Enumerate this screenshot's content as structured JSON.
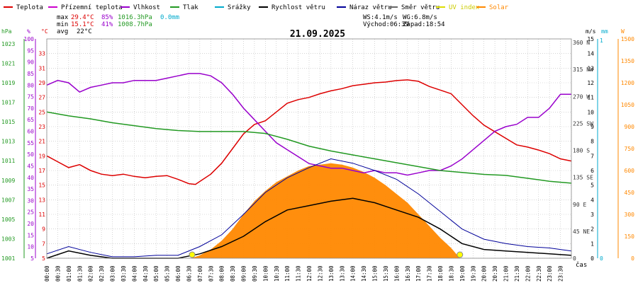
{
  "legend": [
    {
      "label": "Teplota",
      "color": "#dd0000"
    },
    {
      "label": "Přízemní teplota",
      "color": "#cc00cc"
    },
    {
      "label": "Vlhkost",
      "color": "#9900cc"
    },
    {
      "label": "Tlak",
      "color": "#229922"
    },
    {
      "label": "Srážky",
      "color": "#00aacc"
    },
    {
      "label": "Rychlost větru",
      "color": "#000000"
    },
    {
      "label": "Náraz větru",
      "color": "#000099"
    },
    {
      "label": "Směr větru",
      "color": "#666666"
    },
    {
      "label": "UV index",
      "color": "#dddd00"
    },
    {
      "label": "Solar",
      "color": "#ff8800"
    }
  ],
  "stats": {
    "max_label": "max",
    "max_temp": "29.4°C",
    "max_hum": "85%",
    "max_press": "1016.3hPa",
    "rain": "0.0mm",
    "min_label": "min",
    "min_temp": "15.1°C",
    "min_hum": "41%",
    "min_press": "1008.7hPa",
    "avg_label": "avg",
    "avg_temp": "22°C"
  },
  "wind_info": {
    "ws": "WS:4.1m/s",
    "wg": "WG:6.8m/s",
    "sunrise": "Východ:06:39",
    "sunset": "Západ:18:54"
  },
  "axis_units": {
    "hpa": "hPa",
    "pct": "%",
    "deg": "°C",
    "ms": "m/s",
    "mm": "mm",
    "w": "W",
    "time": "čas"
  },
  "colors": {
    "temp": "#dd0000",
    "hum": "#9900cc",
    "press": "#229922",
    "wind": "#000000",
    "gust": "#000099",
    "dir": "#666666",
    "solar": "#ff8800",
    "uv": "#dddd00",
    "rain": "#00aacc",
    "grid": "#bbbbbb"
  },
  "chart_data": {
    "type": "line",
    "title": "21.09.2025",
    "x_range": [
      0,
      24
    ],
    "x_ticks": [
      "00:00",
      "00:30",
      "01:00",
      "01:30",
      "02:00",
      "02:30",
      "03:00",
      "03:30",
      "04:00",
      "04:30",
      "05:00",
      "05:30",
      "06:00",
      "06:30",
      "07:00",
      "07:30",
      "08:00",
      "08:30",
      "09:00",
      "09:30",
      "10:00",
      "10:30",
      "11:00",
      "11:30",
      "12:00",
      "12:30",
      "13:00",
      "13:30",
      "14:00",
      "14:30",
      "15:00",
      "15:30",
      "16:00",
      "16:30",
      "17:00",
      "17:30",
      "18:00",
      "18:30",
      "19:00",
      "19:30",
      "20:00",
      "20:30",
      "21:00",
      "21:30",
      "22:00",
      "22:30",
      "23:00",
      "23:30"
    ],
    "axes": {
      "pressure": {
        "unit": "hPa",
        "range": [
          1001,
          1023.5
        ],
        "ticks": [
          "1001",
          "1003",
          "1005",
          "1007",
          "1009",
          "1011",
          "1013",
          "1015",
          "1017",
          "1019",
          "1021",
          "1023"
        ]
      },
      "humidity": {
        "unit": "%",
        "range": [
          5,
          100
        ],
        "ticks": [
          "5",
          "10",
          "15",
          "20",
          "25",
          "30",
          "35",
          "40",
          "45",
          "50",
          "55",
          "60",
          "65",
          "70",
          "75",
          "80",
          "85",
          "90",
          "95",
          "100"
        ]
      },
      "temperature": {
        "unit": "°C",
        "range": [
          5,
          35
        ],
        "ticks": [
          "5",
          "7",
          "9",
          "11",
          "13",
          "15",
          "17",
          "19",
          "21",
          "23",
          "25",
          "27",
          "29",
          "31",
          "33"
        ]
      },
      "wind_dir": {
        "unit": "",
        "ticks": [
          {
            "deg": 0,
            "label": "0"
          },
          {
            "deg": 45,
            "label": "45 NE"
          },
          {
            "deg": 90,
            "label": "90 E"
          },
          {
            "deg": 135,
            "label": "135 SE"
          },
          {
            "deg": 180,
            "label": "180 S"
          },
          {
            "deg": 225,
            "label": "225 SW"
          },
          {
            "deg": 270,
            "label": "270 W"
          },
          {
            "deg": 315,
            "label": "315 NW"
          },
          {
            "deg": 360,
            "label": "360 N"
          }
        ]
      },
      "wind_speed": {
        "unit": "m/s",
        "range": [
          0,
          15
        ],
        "ticks": [
          "0",
          "1",
          "2",
          "3",
          "4",
          "5",
          "6",
          "7",
          "8",
          "9",
          "10",
          "11",
          "12",
          "13",
          "14",
          "15"
        ]
      },
      "rain": {
        "unit": "mm",
        "ticks": [
          "0",
          "1"
        ]
      },
      "solar": {
        "unit": "W",
        "range": [
          0,
          1500
        ],
        "ticks": [
          "0",
          "150",
          "300",
          "450",
          "600",
          "750",
          "900",
          "1050",
          "1200",
          "1350",
          "1500"
        ]
      }
    },
    "series": [
      {
        "name": "Teplota",
        "axis": "temperature",
        "points": [
          [
            0,
            19.0
          ],
          [
            0.5,
            18.2
          ],
          [
            1,
            17.4
          ],
          [
            1.5,
            17.8
          ],
          [
            2,
            17.0
          ],
          [
            2.5,
            16.5
          ],
          [
            3,
            16.3
          ],
          [
            3.5,
            16.5
          ],
          [
            4,
            16.2
          ],
          [
            4.5,
            16.0
          ],
          [
            5,
            16.2
          ],
          [
            5.5,
            16.3
          ],
          [
            6,
            15.8
          ],
          [
            6.5,
            15.2
          ],
          [
            6.8,
            15.1
          ],
          [
            7,
            15.5
          ],
          [
            7.5,
            16.5
          ],
          [
            8,
            18.0
          ],
          [
            8.5,
            20.0
          ],
          [
            9,
            22.0
          ],
          [
            9.5,
            23.3
          ],
          [
            10,
            23.8
          ],
          [
            10.5,
            25.0
          ],
          [
            11,
            26.2
          ],
          [
            11.5,
            26.7
          ],
          [
            12,
            27.0
          ],
          [
            12.5,
            27.5
          ],
          [
            13,
            27.9
          ],
          [
            13.5,
            28.2
          ],
          [
            14,
            28.6
          ],
          [
            14.5,
            28.8
          ],
          [
            15,
            29.0
          ],
          [
            15.5,
            29.1
          ],
          [
            16,
            29.3
          ],
          [
            16.5,
            29.4
          ],
          [
            17,
            29.2
          ],
          [
            17.5,
            28.5
          ],
          [
            18,
            28.0
          ],
          [
            18.5,
            27.5
          ],
          [
            19,
            26.0
          ],
          [
            19.5,
            24.5
          ],
          [
            20,
            23.2
          ],
          [
            20.5,
            22.3
          ],
          [
            21,
            21.4
          ],
          [
            21.5,
            20.5
          ],
          [
            22,
            20.2
          ],
          [
            22.5,
            19.8
          ],
          [
            23,
            19.3
          ],
          [
            23.5,
            18.6
          ],
          [
            24,
            18.3
          ]
        ]
      },
      {
        "name": "Vlhkost",
        "axis": "humidity",
        "points": [
          [
            0,
            80
          ],
          [
            0.5,
            82
          ],
          [
            1,
            81
          ],
          [
            1.5,
            77
          ],
          [
            2,
            79
          ],
          [
            2.5,
            80
          ],
          [
            3,
            81
          ],
          [
            3.5,
            81
          ],
          [
            4,
            82
          ],
          [
            4.5,
            82
          ],
          [
            5,
            82
          ],
          [
            5.5,
            83
          ],
          [
            6,
            84
          ],
          [
            6.5,
            85
          ],
          [
            7,
            85
          ],
          [
            7.5,
            84
          ],
          [
            8,
            81
          ],
          [
            8.5,
            76
          ],
          [
            9,
            70
          ],
          [
            9.5,
            65
          ],
          [
            10,
            60
          ],
          [
            10.5,
            55
          ],
          [
            11,
            52
          ],
          [
            11.5,
            49
          ],
          [
            12,
            46
          ],
          [
            12.5,
            45
          ],
          [
            13,
            44
          ],
          [
            13.5,
            44
          ],
          [
            14,
            43
          ],
          [
            14.5,
            42
          ],
          [
            15,
            43
          ],
          [
            15.5,
            42
          ],
          [
            16,
            42
          ],
          [
            16.5,
            41
          ],
          [
            17,
            42
          ],
          [
            17.5,
            43
          ],
          [
            18,
            43
          ],
          [
            18.5,
            45
          ],
          [
            19,
            48
          ],
          [
            19.5,
            52
          ],
          [
            20,
            56
          ],
          [
            20.5,
            60
          ],
          [
            21,
            62
          ],
          [
            21.5,
            63
          ],
          [
            22,
            66
          ],
          [
            22.5,
            66
          ],
          [
            23,
            70
          ],
          [
            23.5,
            76
          ],
          [
            24,
            76
          ]
        ]
      },
      {
        "name": "Tlak",
        "axis": "pressure",
        "points": [
          [
            0,
            1016.0
          ],
          [
            1,
            1015.6
          ],
          [
            2,
            1015.3
          ],
          [
            3,
            1014.9
          ],
          [
            4,
            1014.6
          ],
          [
            5,
            1014.3
          ],
          [
            6,
            1014.1
          ],
          [
            7,
            1014.0
          ],
          [
            8,
            1014.0
          ],
          [
            9,
            1014.0
          ],
          [
            10,
            1013.8
          ],
          [
            11,
            1013.2
          ],
          [
            12,
            1012.5
          ],
          [
            13,
            1012.0
          ],
          [
            14,
            1011.6
          ],
          [
            15,
            1011.2
          ],
          [
            16,
            1010.8
          ],
          [
            17,
            1010.4
          ],
          [
            18,
            1010.0
          ],
          [
            19,
            1009.8
          ],
          [
            20,
            1009.6
          ],
          [
            21,
            1009.5
          ],
          [
            22,
            1009.2
          ],
          [
            23,
            1008.9
          ],
          [
            24,
            1008.7
          ]
        ]
      },
      {
        "name": "Rychlost větru",
        "axis": "wind_speed",
        "points": [
          [
            0,
            0
          ],
          [
            1,
            0.5
          ],
          [
            2,
            0.2
          ],
          [
            3,
            0
          ],
          [
            4,
            0
          ],
          [
            5,
            0
          ],
          [
            6,
            0
          ],
          [
            7,
            0.3
          ],
          [
            8,
            0.8
          ],
          [
            9,
            1.5
          ],
          [
            10,
            2.5
          ],
          [
            11,
            3.3
          ],
          [
            12,
            3.6
          ],
          [
            13,
            3.9
          ],
          [
            14,
            4.1
          ],
          [
            15,
            3.8
          ],
          [
            16,
            3.3
          ],
          [
            17,
            2.8
          ],
          [
            18,
            2.0
          ],
          [
            19,
            1.0
          ],
          [
            20,
            0.6
          ],
          [
            21,
            0.5
          ],
          [
            22,
            0.4
          ],
          [
            23,
            0.3
          ],
          [
            24,
            0.2
          ]
        ]
      },
      {
        "name": "Náraz větru",
        "axis": "wind_speed",
        "points": [
          [
            0,
            0.3
          ],
          [
            1,
            0.8
          ],
          [
            2,
            0.4
          ],
          [
            3,
            0.1
          ],
          [
            4,
            0.1
          ],
          [
            5,
            0.2
          ],
          [
            6,
            0.2
          ],
          [
            7,
            0.8
          ],
          [
            8,
            1.6
          ],
          [
            9,
            3.0
          ],
          [
            10,
            4.5
          ],
          [
            11,
            5.5
          ],
          [
            12,
            6.2
          ],
          [
            13,
            6.8
          ],
          [
            14,
            6.5
          ],
          [
            15,
            6.0
          ],
          [
            16,
            5.4
          ],
          [
            17,
            4.4
          ],
          [
            18,
            3.2
          ],
          [
            19,
            2.0
          ],
          [
            20,
            1.3
          ],
          [
            21,
            1.0
          ],
          [
            22,
            0.8
          ],
          [
            23,
            0.7
          ],
          [
            24,
            0.5
          ]
        ]
      },
      {
        "name": "Solar",
        "axis": "solar",
        "points": [
          [
            6.6,
            0
          ],
          [
            7,
            20
          ],
          [
            7.5,
            60
          ],
          [
            8,
            120
          ],
          [
            8.5,
            200
          ],
          [
            9,
            300
          ],
          [
            9.5,
            390
          ],
          [
            10,
            460
          ],
          [
            10.5,
            520
          ],
          [
            11,
            560
          ],
          [
            11.5,
            600
          ],
          [
            12,
            630
          ],
          [
            12.5,
            640
          ],
          [
            13,
            650
          ],
          [
            13.5,
            640
          ],
          [
            14,
            620
          ],
          [
            14.5,
            590
          ],
          [
            15,
            550
          ],
          [
            15.5,
            500
          ],
          [
            16,
            440
          ],
          [
            16.5,
            380
          ],
          [
            17,
            300
          ],
          [
            17.5,
            220
          ],
          [
            18,
            140
          ],
          [
            18.5,
            70
          ],
          [
            18.9,
            0
          ]
        ]
      }
    ],
    "sun_markers": {
      "sunrise": "06:39",
      "sunset": "18:54"
    }
  }
}
